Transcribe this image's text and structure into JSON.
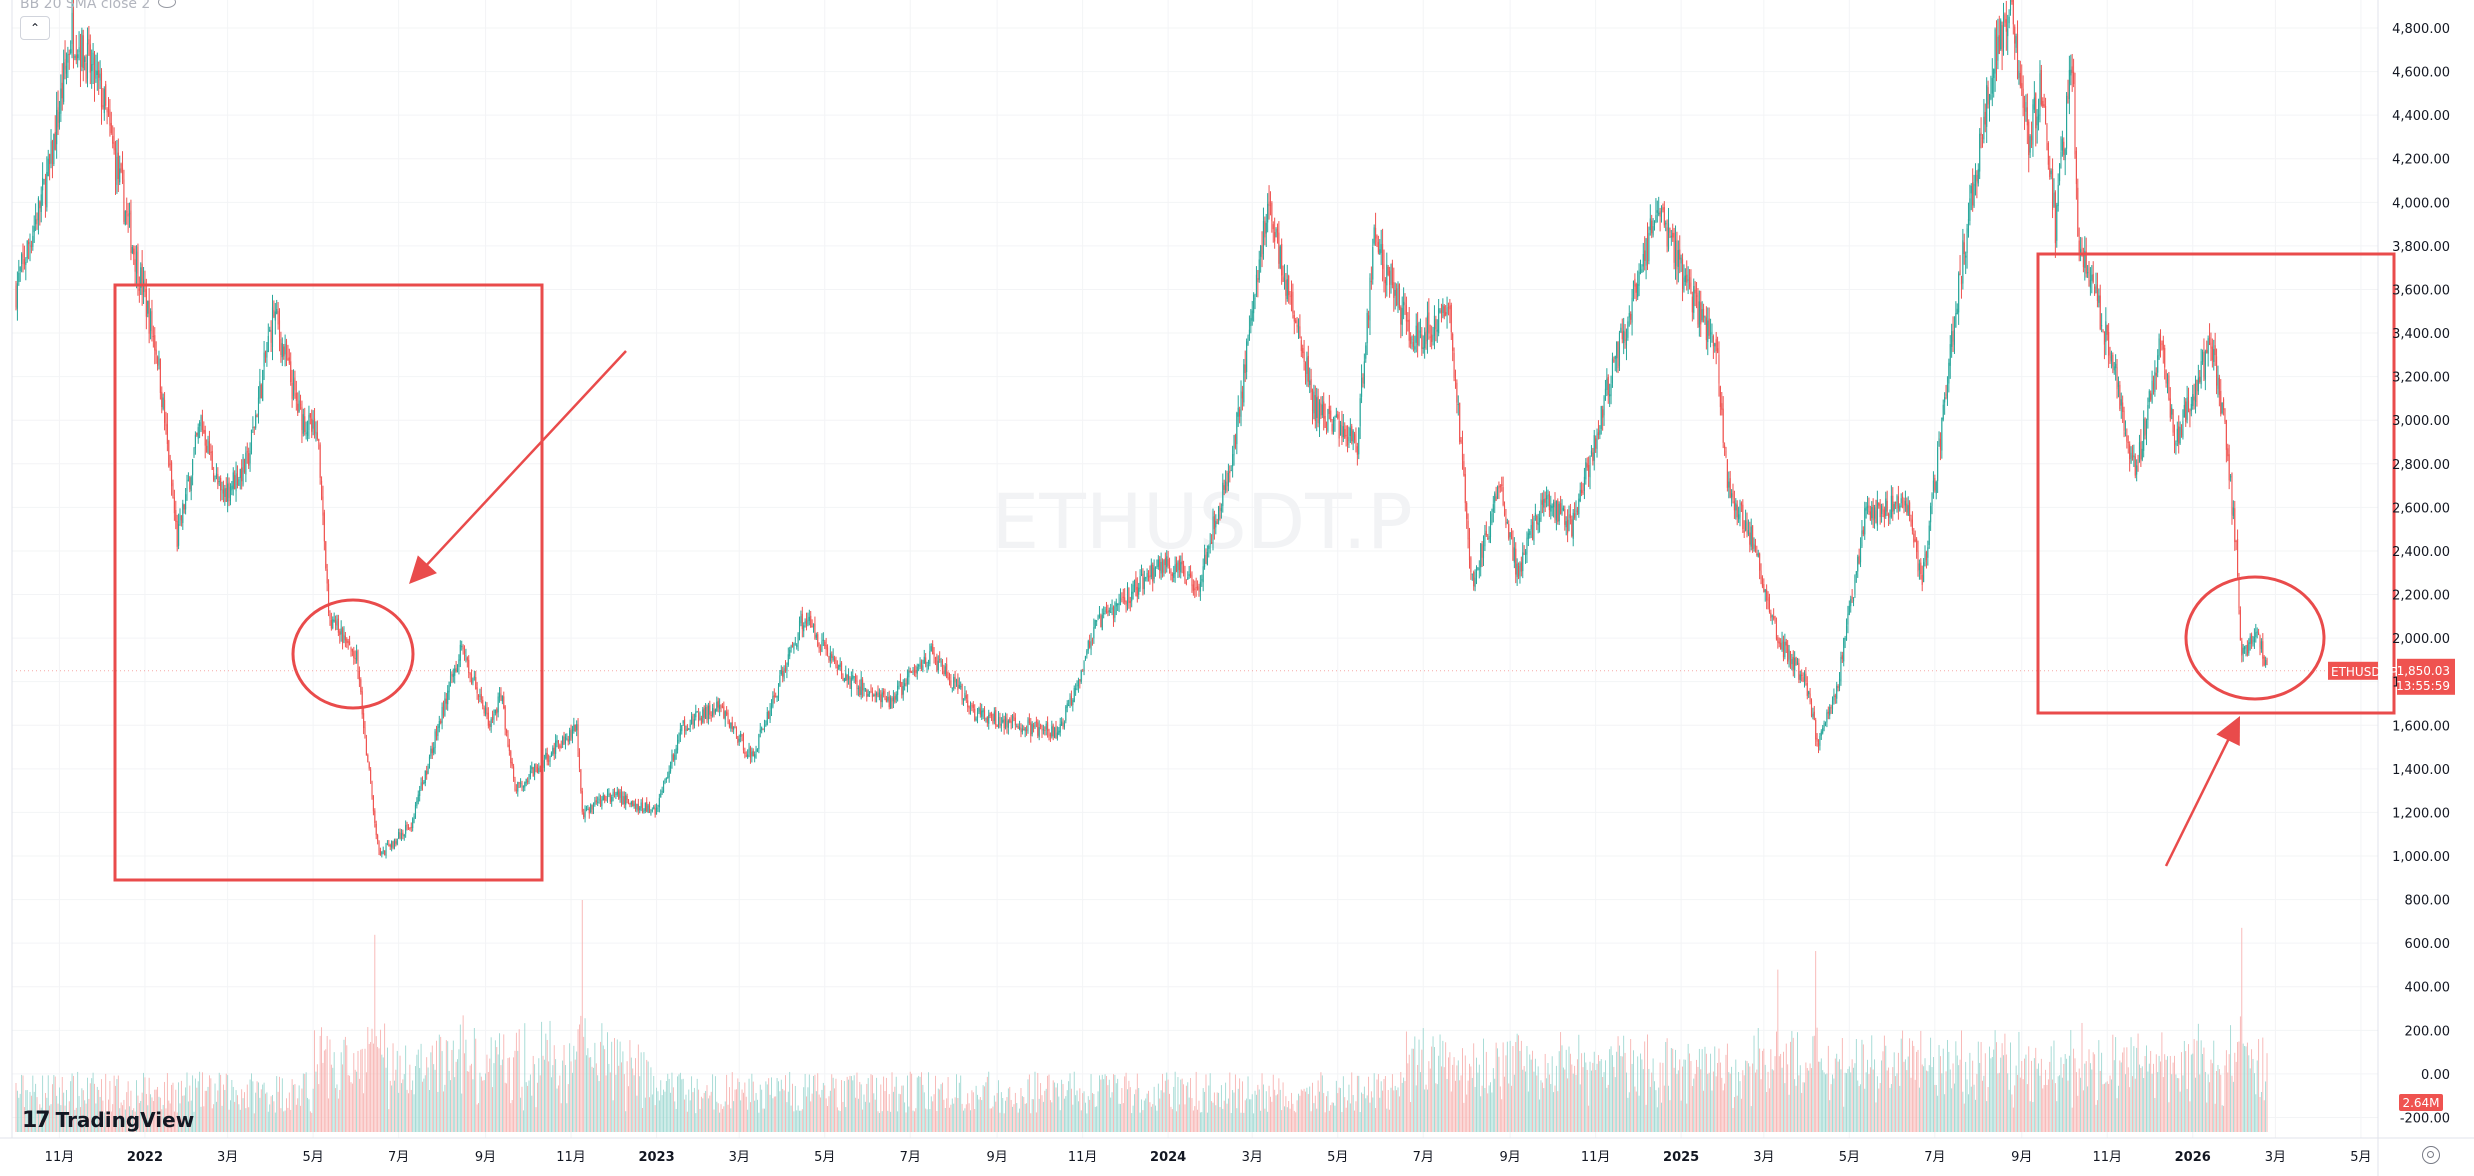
{
  "indicator": {
    "label": "BB 20 SMA close 2"
  },
  "brand": {
    "name": "TradingView",
    "logo": "17"
  },
  "watermark": "ETHUSDT.P",
  "icons": {
    "visibility": "eye-icon",
    "collapse": "chevron-up-icon",
    "settings": "gear-icon",
    "logo": "tradingview-logo-icon",
    "collapse_glyph": "⌃"
  },
  "colors": {
    "up": "#26a69a",
    "down": "#ef5350",
    "annotation": "#e94b4b",
    "volume_up": "#9fd8d2",
    "volume_down": "#f7b3b1"
  },
  "price_tag": {
    "symbol": "ETHUSDT.P",
    "price": "1,850.03",
    "countdown": "13:55:59"
  },
  "volume_tag": "2.64M",
  "chart_data": {
    "type": "candlestick",
    "symbol": "ETHUSDT.P",
    "interval": "1D",
    "y_axis": {
      "ticks": [
        "4,800.00",
        "4,600.00",
        "4,400.00",
        "4,200.00",
        "4,000.00",
        "3,800.00",
        "3,600.00",
        "3,400.00",
        "3,200.00",
        "3,000.00",
        "2,800.00",
        "2,600.00",
        "2,400.00",
        "2,200.00",
        "2,000.00",
        "1,800.00",
        "1,600.00",
        "1,400.00",
        "1,200.00",
        "1,000.00",
        "800.00",
        "600.00",
        "400.00",
        "200.00",
        "0.00",
        "-200.00"
      ],
      "range": [
        -300,
        4900
      ]
    },
    "x_axis": {
      "ticks": [
        "11月",
        "2022",
        "3月",
        "5月",
        "7月",
        "9月",
        "11月",
        "2023",
        "3月",
        "5月",
        "7月",
        "9月",
        "11月",
        "2024",
        "3月",
        "5月",
        "7月",
        "9月",
        "11月",
        "2025",
        "3月",
        "5月",
        "7月",
        "9月",
        "11月",
        "2026",
        "3月",
        "5月"
      ],
      "tick_months": [
        "2021-11",
        "2022-01",
        "2022-03",
        "2022-05",
        "2022-07",
        "2022-09",
        "2022-11",
        "2023-01",
        "2023-03",
        "2023-05",
        "2023-07",
        "2023-09",
        "2023-11",
        "2024-01",
        "2024-03",
        "2024-05",
        "2024-07",
        "2024-09",
        "2024-11",
        "2025-01",
        "2025-03",
        "2025-05",
        "2025-07",
        "2025-09",
        "2025-11",
        "2026-01",
        "2026-03",
        "2026-05"
      ]
    },
    "price_path": [
      [
        "2021-10",
        3600
      ],
      [
        "2021-10-25",
        4150
      ],
      [
        "2021-11-10",
        4800
      ],
      [
        "2021-12-01",
        4500
      ],
      [
        "2021-12-20",
        3900
      ],
      [
        "2022-01-10",
        3300
      ],
      [
        "2022-01-24",
        2450
      ],
      [
        "2022-02-10",
        3000
      ],
      [
        "2022-02-24",
        2650
      ],
      [
        "2022-03-15",
        2800
      ],
      [
        "2022-04-03",
        3500
      ],
      [
        "2022-04-20",
        3050
      ],
      [
        "2022-05-05",
        2900
      ],
      [
        "2022-05-12",
        2100
      ],
      [
        "2022-06-01",
        1900
      ],
      [
        "2022-06-13",
        1200
      ],
      [
        "2022-06-18",
        1000
      ],
      [
        "2022-07-10",
        1150
      ],
      [
        "2022-08-14",
        1950
      ],
      [
        "2022-09-05",
        1600
      ],
      [
        "2022-09-12",
        1750
      ],
      [
        "2022-09-22",
        1300
      ],
      [
        "2022-11-05",
        1600
      ],
      [
        "2022-11-09",
        1200
      ],
      [
        "2022-12-01",
        1280
      ],
      [
        "2022-12-31",
        1200
      ],
      [
        "2023-01-20",
        1600
      ],
      [
        "2023-02-15",
        1680
      ],
      [
        "2023-03-10",
        1450
      ],
      [
        "2023-04-16",
        2100
      ],
      [
        "2023-05-15",
        1820
      ],
      [
        "2023-06-15",
        1700
      ],
      [
        "2023-07-15",
        1930
      ],
      [
        "2023-08-17",
        1650
      ],
      [
        "2023-09-15",
        1600
      ],
      [
        "2023-10-15",
        1560
      ],
      [
        "2023-11-10",
        2050
      ],
      [
        "2023-12-28",
        2350
      ],
      [
        "2024-01-22",
        2250
      ],
      [
        "2024-02-15",
        2800
      ],
      [
        "2024-03-12",
        4000
      ],
      [
        "2024-04-15",
        3050
      ],
      [
        "2024-05-15",
        2900
      ],
      [
        "2024-05-27",
        3850
      ],
      [
        "2024-06-24",
        3350
      ],
      [
        "2024-07-20",
        3500
      ],
      [
        "2024-08-05",
        2250
      ],
      [
        "2024-08-25",
        2700
      ],
      [
        "2024-09-06",
        2300
      ],
      [
        "2024-09-25",
        2650
      ],
      [
        "2024-10-15",
        2500
      ],
      [
        "2024-11-10",
        3150
      ],
      [
        "2024-12-16",
        3980
      ],
      [
        "2025-01-06",
        3600
      ],
      [
        "2025-01-26",
        3350
      ],
      [
        "2025-02-03",
        2700
      ],
      [
        "2025-02-24",
        2400
      ],
      [
        "2025-03-10",
        2000
      ],
      [
        "2025-03-31",
        1800
      ],
      [
        "2025-04-09",
        1500
      ],
      [
        "2025-04-23",
        1800
      ],
      [
        "2025-05-12",
        2550
      ],
      [
        "2025-06-10",
        2650
      ],
      [
        "2025-06-22",
        2250
      ],
      [
        "2025-07-20",
        3700
      ],
      [
        "2025-08-13",
        4700
      ],
      [
        "2025-08-24",
        4900
      ],
      [
        "2025-09-06",
        4300
      ],
      [
        "2025-09-15",
        4550
      ],
      [
        "2025-09-25",
        3900
      ],
      [
        "2025-10-07",
        4650
      ],
      [
        "2025-10-11",
        3850
      ],
      [
        "2025-11-04",
        3300
      ],
      [
        "2025-11-21",
        2750
      ],
      [
        "2025-12-09",
        3350
      ],
      [
        "2025-12-20",
        2900
      ],
      [
        "2026-01-14",
        3350
      ],
      [
        "2026-01-25",
        2900
      ],
      [
        "2026-02-01",
        2400
      ],
      [
        "2026-02-05",
        1900
      ],
      [
        "2026-02-15",
        2050
      ],
      [
        "2026-02-23",
        1850
      ]
    ],
    "last_price": 1850.03,
    "volume_spikes": [
      [
        "2022-06-14",
        0.85
      ],
      [
        "2022-11-09",
        1.0
      ],
      [
        "2025-03-11",
        0.7
      ],
      [
        "2025-04-07",
        0.78
      ],
      [
        "2026-02-05",
        0.88
      ]
    ],
    "annotations": [
      {
        "type": "rectangle",
        "period": "2022-01 to 2022-09",
        "price_range": [
          900,
          3620
        ]
      },
      {
        "type": "ellipse",
        "center_date": "2022-05-15",
        "center_price": 2000
      },
      {
        "type": "arrow",
        "pointing_to": "2022-05-15"
      },
      {
        "type": "rectangle",
        "period": "2025-10 to 2026-03",
        "price_range": [
          1630,
          3740
        ]
      },
      {
        "type": "ellipse",
        "center_date": "2026-02-10",
        "center_price": 1980
      },
      {
        "type": "arrow",
        "pointing_to": "2026-02-10"
      }
    ]
  }
}
